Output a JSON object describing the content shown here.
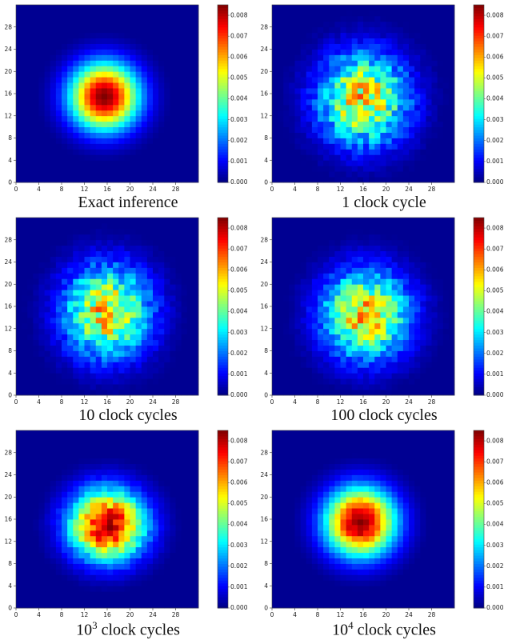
{
  "chart_data": [
    {
      "type": "heatmap",
      "caption": "Exact inference",
      "x_ticks": [
        "0",
        "4",
        "8",
        "12",
        "16",
        "20",
        "24",
        "28"
      ],
      "y_ticks": [
        "0",
        "4",
        "8",
        "12",
        "16",
        "20",
        "24",
        "28"
      ],
      "colorbar_ticks": [
        "0.000",
        "0.001",
        "0.002",
        "0.003",
        "0.004",
        "0.005",
        "0.006",
        "0.007",
        "0.008"
      ],
      "xlim": [
        0,
        32
      ],
      "ylim": [
        0,
        32
      ],
      "clim": [
        0,
        0.0085
      ],
      "colormap": "jet",
      "peak_value": 0.0085,
      "peak_center": [
        15.5,
        15.5
      ],
      "spread": [
        4.2,
        4.2
      ],
      "noise": 0
    },
    {
      "type": "heatmap",
      "caption": "1 clock cycle",
      "x_ticks": [
        "0",
        "4",
        "8",
        "12",
        "16",
        "20",
        "24",
        "28"
      ],
      "y_ticks": [
        "0",
        "4",
        "8",
        "12",
        "16",
        "20",
        "24",
        "28"
      ],
      "colorbar_ticks": [
        "0.000",
        "0.001",
        "0.002",
        "0.003",
        "0.004",
        "0.005",
        "0.006",
        "0.007",
        "0.008"
      ],
      "xlim": [
        0,
        32
      ],
      "ylim": [
        0,
        32
      ],
      "clim": [
        0,
        0.0085
      ],
      "colormap": "jet",
      "peak_value": 0.0055,
      "peak_center": [
        16,
        15
      ],
      "spread": [
        5.5,
        5.8
      ],
      "noise": 0.35
    },
    {
      "type": "heatmap",
      "caption": "10 clock cycles",
      "x_ticks": [
        "0",
        "4",
        "8",
        "12",
        "16",
        "20",
        "24",
        "28"
      ],
      "y_ticks": [
        "0",
        "4",
        "8",
        "12",
        "16",
        "20",
        "24",
        "28"
      ],
      "colorbar_ticks": [
        "0.000",
        "0.001",
        "0.002",
        "0.003",
        "0.004",
        "0.005",
        "0.006",
        "0.007",
        "0.008"
      ],
      "xlim": [
        0,
        32
      ],
      "ylim": [
        0,
        32
      ],
      "clim": [
        0,
        0.0085
      ],
      "colormap": "jet",
      "peak_value": 0.0055,
      "peak_center": [
        16,
        15
      ],
      "spread": [
        5.4,
        5.8
      ],
      "noise": 0.32
    },
    {
      "type": "heatmap",
      "caption": "100 clock cycles",
      "x_ticks": [
        "0",
        "4",
        "8",
        "12",
        "16",
        "20",
        "24",
        "28"
      ],
      "y_ticks": [
        "0",
        "4",
        "8",
        "12",
        "16",
        "20",
        "24",
        "28"
      ],
      "colorbar_ticks": [
        "0.000",
        "0.001",
        "0.002",
        "0.003",
        "0.004",
        "0.005",
        "0.006",
        "0.007",
        "0.008"
      ],
      "xlim": [
        0,
        32
      ],
      "ylim": [
        0,
        32
      ],
      "clim": [
        0,
        0.0085
      ],
      "colormap": "jet",
      "peak_value": 0.0057,
      "peak_center": [
        16.5,
        14.5
      ],
      "spread": [
        5.4,
        5.6
      ],
      "noise": 0.3
    },
    {
      "type": "heatmap",
      "caption_base": "10",
      "caption_exp": "3",
      "caption_rest": " clock cycles",
      "x_ticks": [
        "0",
        "4",
        "8",
        "12",
        "16",
        "20",
        "24",
        "28"
      ],
      "y_ticks": [
        "0",
        "4",
        "8",
        "12",
        "16",
        "20",
        "24",
        "28"
      ],
      "colorbar_ticks": [
        "0.000",
        "0.001",
        "0.002",
        "0.003",
        "0.004",
        "0.005",
        "0.006",
        "0.007",
        "0.008"
      ],
      "xlim": [
        0,
        32
      ],
      "ylim": [
        0,
        32
      ],
      "clim": [
        0,
        0.0085
      ],
      "colormap": "jet",
      "peak_value": 0.0082,
      "peak_center": [
        16,
        15
      ],
      "spread": [
        4.6,
        4.4
      ],
      "noise": 0.15
    },
    {
      "type": "heatmap",
      "caption_base": "10",
      "caption_exp": "4",
      "caption_rest": " clock cycles",
      "x_ticks": [
        "0",
        "4",
        "8",
        "12",
        "16",
        "20",
        "24",
        "28"
      ],
      "y_ticks": [
        "0",
        "4",
        "8",
        "12",
        "16",
        "20",
        "24",
        "28"
      ],
      "colorbar_ticks": [
        "0.000",
        "0.001",
        "0.002",
        "0.003",
        "0.004",
        "0.005",
        "0.006",
        "0.007",
        "0.008"
      ],
      "xlim": [
        0,
        32
      ],
      "ylim": [
        0,
        32
      ],
      "clim": [
        0,
        0.0085
      ],
      "colormap": "jet",
      "peak_value": 0.0085,
      "peak_center": [
        15.5,
        15.5
      ],
      "spread": [
        4.3,
        4.3
      ],
      "noise": 0.05
    }
  ]
}
